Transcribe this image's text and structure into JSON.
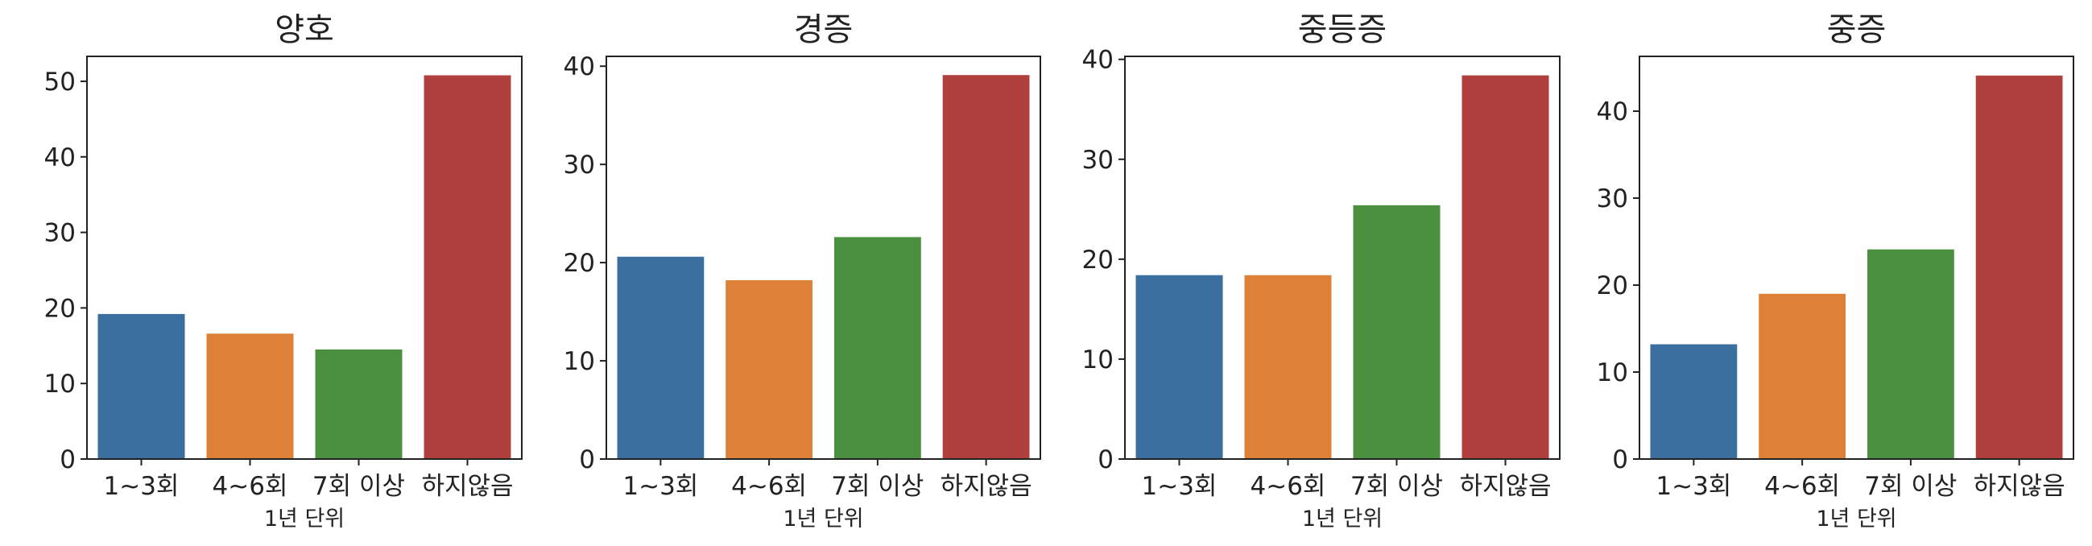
{
  "chart_data": [
    {
      "type": "bar",
      "title": "양호",
      "xlabel": "1년 단위",
      "ylabel": "",
      "categories": [
        "1~3회",
        "4~6회",
        "7회 이상",
        "하지않음"
      ],
      "values": [
        19.2,
        16.6,
        14.5,
        50.8
      ],
      "colors": [
        "#3a6fa0",
        "#dc8137",
        "#4a903f",
        "#b0403d"
      ],
      "ylim": [
        0,
        53.3
      ],
      "yticks": [
        0,
        10,
        20,
        30,
        40,
        50
      ]
    },
    {
      "type": "bar",
      "title": "경증",
      "xlabel": "1년 단위",
      "ylabel": "",
      "categories": [
        "1~3회",
        "4~6회",
        "7회 이상",
        "하지않음"
      ],
      "values": [
        20.6,
        18.2,
        22.6,
        39.1
      ],
      "colors": [
        "#3a6fa0",
        "#dc8137",
        "#4a903f",
        "#b0403d"
      ],
      "ylim": [
        0,
        41.0
      ],
      "yticks": [
        0,
        10,
        20,
        30,
        40
      ]
    },
    {
      "type": "bar",
      "title": "중등증",
      "xlabel": "1년 단위",
      "ylabel": "",
      "categories": [
        "1~3회",
        "4~6회",
        "7회 이상",
        "하지않음"
      ],
      "values": [
        18.4,
        18.4,
        25.4,
        38.4
      ],
      "colors": [
        "#3a6fa0",
        "#dc8137",
        "#4a903f",
        "#b0403d"
      ],
      "ylim": [
        0,
        40.3
      ],
      "yticks": [
        0,
        10,
        20,
        30,
        40
      ]
    },
    {
      "type": "bar",
      "title": "중증",
      "xlabel": "1년 단위",
      "ylabel": "",
      "categories": [
        "1~3회",
        "4~6회",
        "7회 이상",
        "하지않음"
      ],
      "values": [
        13.2,
        19.0,
        24.1,
        44.1
      ],
      "colors": [
        "#3a6fa0",
        "#dc8137",
        "#4a903f",
        "#b0403d"
      ],
      "ylim": [
        0,
        46.3
      ],
      "yticks": [
        0,
        10,
        20,
        30,
        40
      ]
    }
  ]
}
